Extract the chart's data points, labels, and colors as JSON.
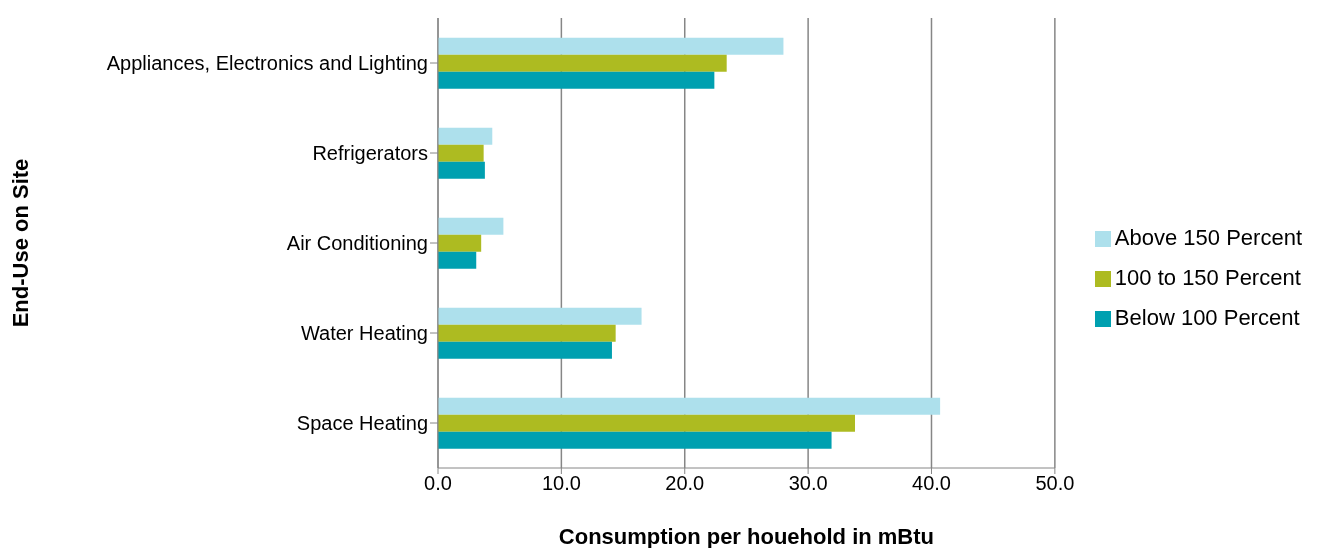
{
  "chart_data": {
    "type": "bar",
    "orientation": "horizontal",
    "xlabel": "Consumption per houehold in mBtu",
    "ylabel": "End-Use on Site",
    "categories": [
      "Appliances, Electronics and Lighting",
      "Refrigerators",
      "Air Conditioning",
      "Water Heating",
      "Space Heating"
    ],
    "series": [
      {
        "name": "Above 150 Percent",
        "color": "#ade0ec",
        "values": [
          28.0,
          4.4,
          5.3,
          16.5,
          40.7
        ]
      },
      {
        "name": "100 to 150 Percent",
        "color": "#adbb21",
        "values": [
          23.4,
          3.7,
          3.5,
          14.4,
          33.8
        ]
      },
      {
        "name": "Below 100 Percent",
        "color": "#00a0b0",
        "values": [
          22.4,
          3.8,
          3.1,
          14.1,
          31.9
        ]
      }
    ],
    "xlim": [
      0,
      50
    ],
    "xticks": [
      {
        "value": 0,
        "label": "0.0"
      },
      {
        "value": 10,
        "label": "10.0"
      },
      {
        "value": 20,
        "label": "20.0"
      },
      {
        "value": 30,
        "label": "30.0"
      },
      {
        "value": 40,
        "label": "40.0"
      },
      {
        "value": 50,
        "label": "50.0"
      }
    ],
    "grid": "x",
    "legend": "right"
  }
}
